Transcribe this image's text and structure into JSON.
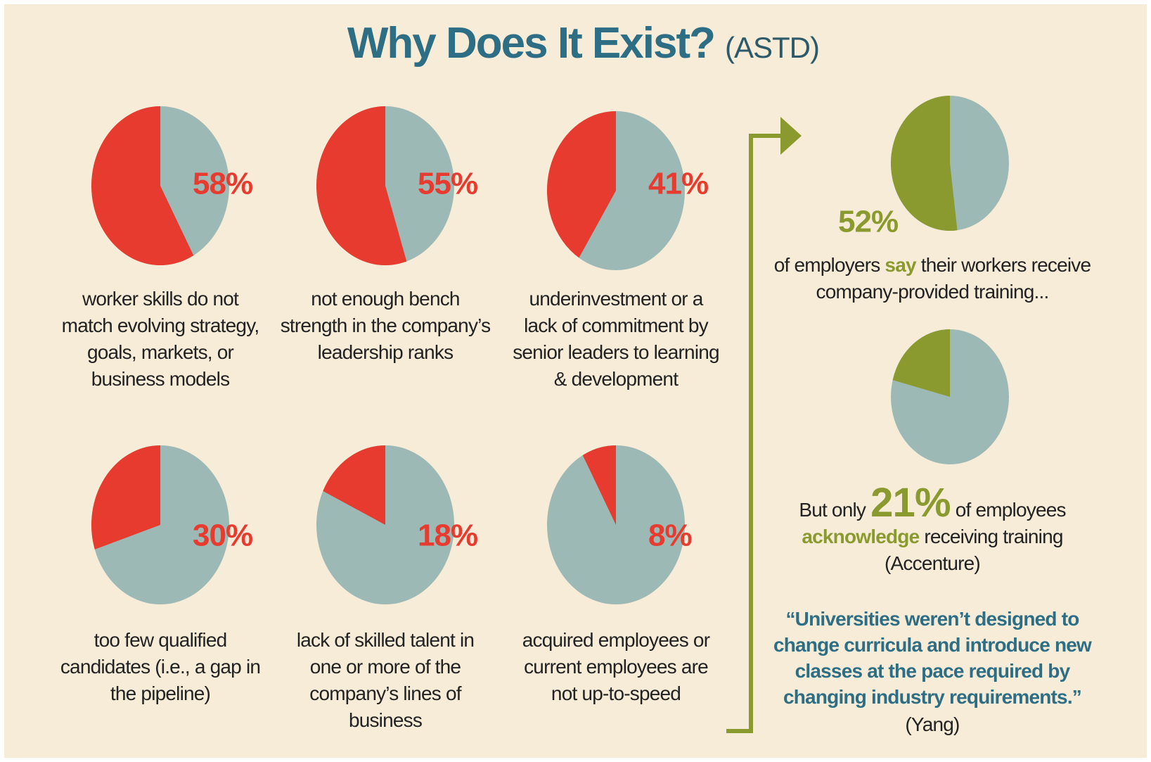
{
  "title": "Why Does It Exist?",
  "title_source": "(ASTD)",
  "chart_data": [
    {
      "type": "pie",
      "values": [
        58
      ],
      "value_labels": [
        "58%"
      ],
      "color": "#e63b2e",
      "rest_color": "#9db9b6",
      "caption": "worker skills do not match evolving strategy, goals, markets, or business models"
    },
    {
      "type": "pie",
      "values": [
        55
      ],
      "value_labels": [
        "55%"
      ],
      "color": "#e63b2e",
      "rest_color": "#9db9b6",
      "caption": "not enough bench strength in the company’s leadership ranks"
    },
    {
      "type": "pie",
      "values": [
        41
      ],
      "value_labels": [
        "41%"
      ],
      "color": "#e63b2e",
      "rest_color": "#9db9b6",
      "caption": "underinvestment or a lack of commitment by senior leaders to learning & development"
    },
    {
      "type": "pie",
      "values": [
        30
      ],
      "value_labels": [
        "30%"
      ],
      "color": "#e63b2e",
      "rest_color": "#9db9b6",
      "caption": "too few qualified candidates (i.e., a gap in the pipeline)"
    },
    {
      "type": "pie",
      "values": [
        18
      ],
      "value_labels": [
        "18%"
      ],
      "color": "#e63b2e",
      "rest_color": "#9db9b6",
      "caption": "lack of skilled talent in one or more of the company’s lines of business"
    },
    {
      "type": "pie",
      "values": [
        8
      ],
      "value_labels": [
        "8%"
      ],
      "color": "#e63b2e",
      "rest_color": "#9db9b6",
      "caption": "acquired employees or current employees are not up-to-speed"
    },
    {
      "type": "pie",
      "values": [
        52
      ],
      "value_labels": [
        "52%"
      ],
      "color": "#8a9a2e",
      "rest_color": "#9db9b6",
      "caption_before": "of employers",
      "caption_highlight": "say",
      "caption_after": "their workers receive company-provided training..."
    },
    {
      "type": "pie",
      "values": [
        21
      ],
      "value_labels": [
        "21%"
      ],
      "color": "#8a9a2e",
      "rest_color": "#9db9b6",
      "caption_lead": "But only",
      "caption_before": "of employees",
      "caption_highlight": "acknowledge",
      "caption_after": "receiving training",
      "source": "(Accenture)"
    }
  ],
  "quote": "“Universities weren’t designed to change curricula and introduce new classes at the pace required by changing industry requirements.”",
  "quote_source": "(Yang)"
}
